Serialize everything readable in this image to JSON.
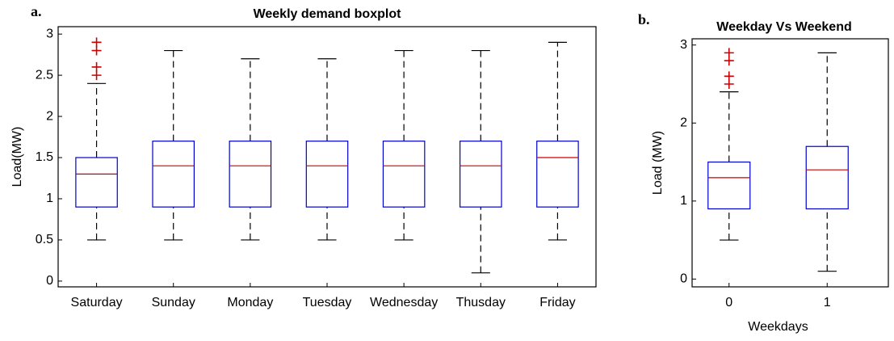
{
  "chart_data": [
    {
      "type": "boxplot",
      "panel": "a.",
      "title": "Weekly demand boxplot",
      "y_label": "Load(MW)",
      "categories": [
        "Saturday",
        "Sunday",
        "Monday",
        "Tuesday",
        "Wednesday",
        "Thusday",
        "Friday"
      ],
      "min": [
        0.5,
        0.5,
        0.5,
        0.5,
        0.5,
        0.1,
        0.5
      ],
      "q1": [
        0.9,
        0.9,
        0.9,
        0.9,
        0.9,
        0.9,
        0.9
      ],
      "median": [
        1.3,
        1.4,
        1.4,
        1.4,
        1.4,
        1.4,
        1.5
      ],
      "q3": [
        1.5,
        1.7,
        1.7,
        1.7,
        1.7,
        1.7,
        1.7
      ],
      "max": [
        2.4,
        2.8,
        2.7,
        2.7,
        2.8,
        2.8,
        2.9
      ],
      "outliers": [
        [
          2.5,
          2.6,
          2.8,
          2.9
        ],
        [],
        [],
        [],
        [],
        [],
        []
      ],
      "box_color": "#0000cc",
      "median_color": "#cc0000",
      "outlier_color": "#cc0000",
      "ylim": [
        -0.07,
        3.09
      ],
      "yticks": [
        0,
        0.5,
        1,
        1.5,
        2,
        2.5,
        3
      ]
    },
    {
      "type": "boxplot",
      "panel": "b.",
      "title": "Weekday Vs Weekend",
      "y_label": "Load (MW)",
      "x_label": "Weekdays",
      "categories": [
        "0",
        "1"
      ],
      "min": [
        0.5,
        0.1
      ],
      "q1": [
        0.9,
        0.9
      ],
      "median": [
        1.3,
        1.4
      ],
      "q3": [
        1.5,
        1.7
      ],
      "max": [
        2.4,
        2.9
      ],
      "outliers": [
        [
          2.5,
          2.6,
          2.8,
          2.9
        ],
        []
      ],
      "box_color": "#0000cc",
      "median_color": "#cc0000",
      "outlier_color": "#cc0000",
      "ylim": [
        -0.1,
        3.08
      ],
      "yticks": [
        0,
        1,
        2,
        3
      ]
    }
  ]
}
